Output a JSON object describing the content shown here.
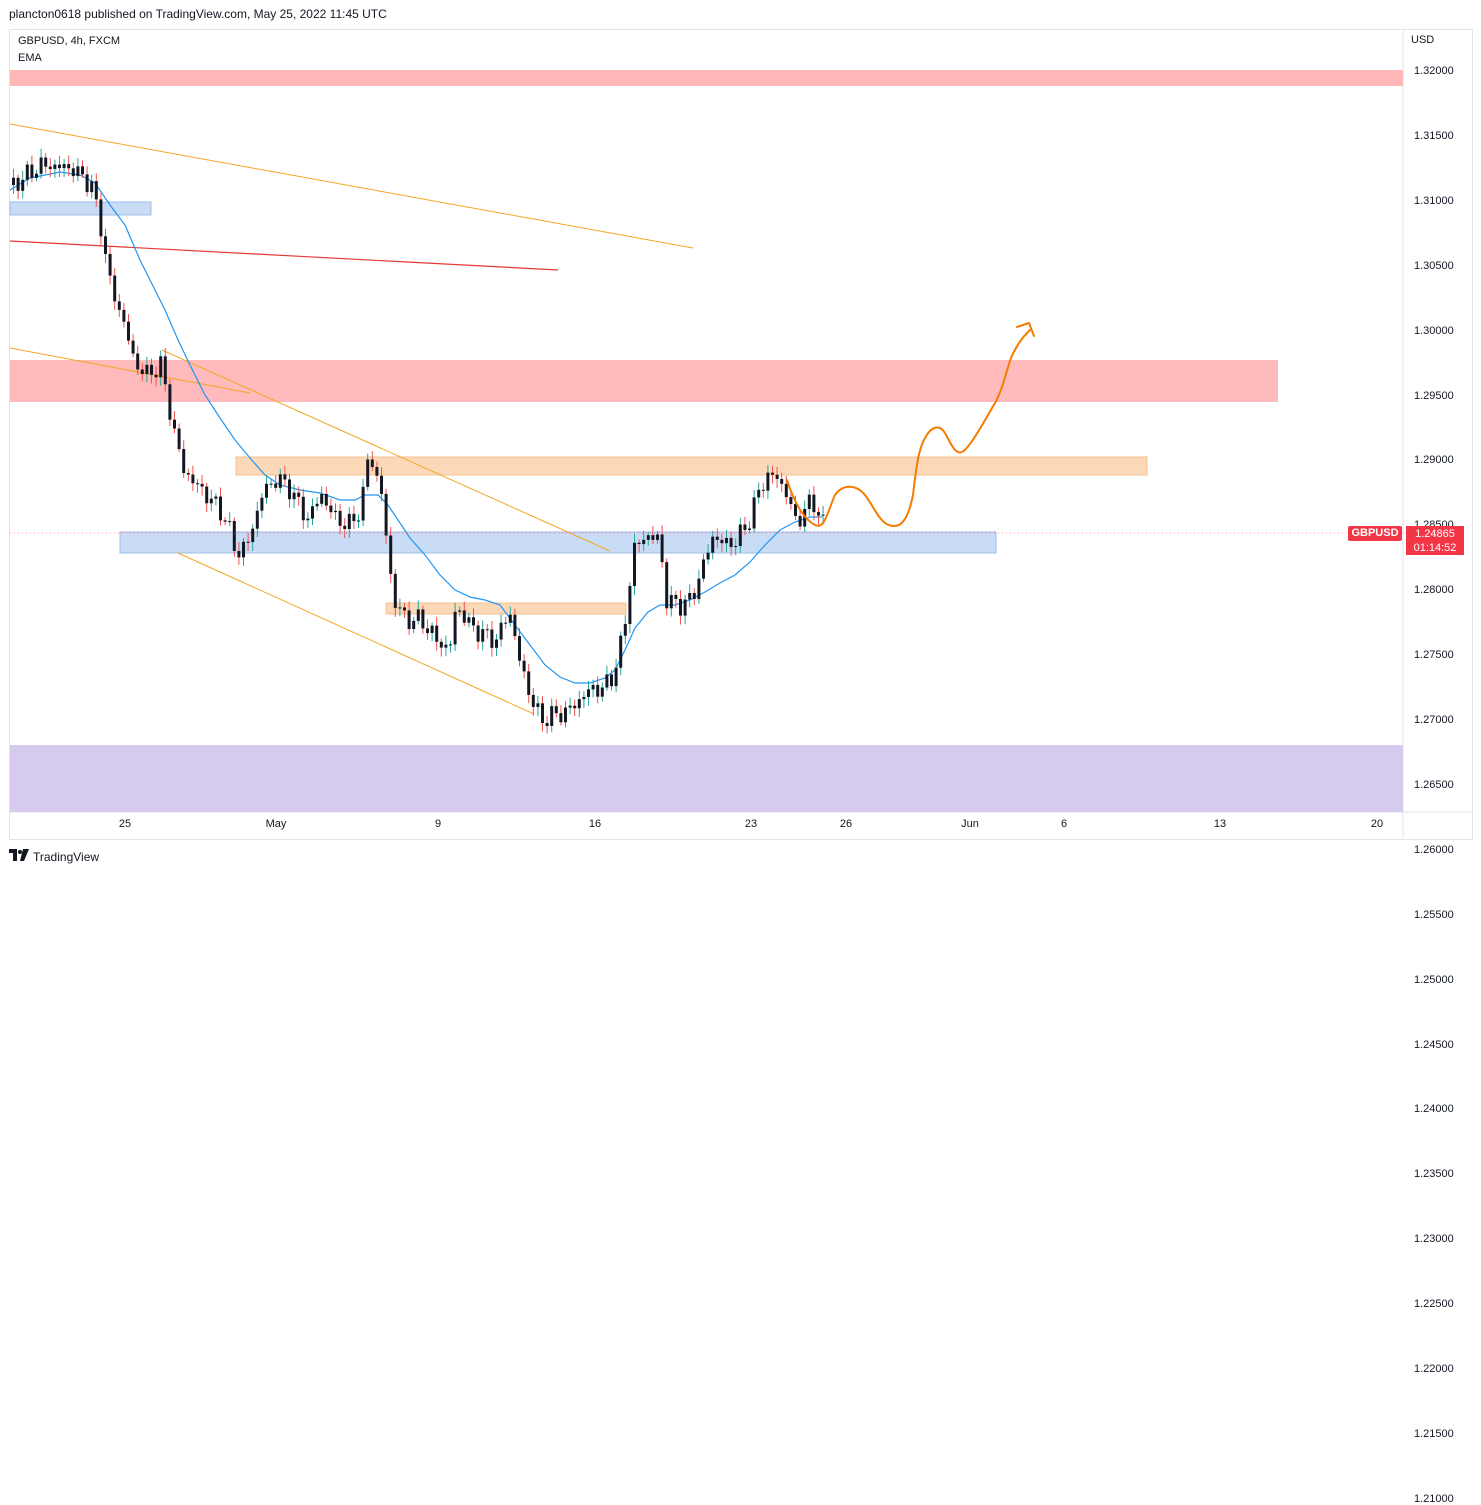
{
  "header": {
    "publish_info": "plancton0618 published on TradingView.com, May 25, 2022 11:45 UTC"
  },
  "chart": {
    "symbol_line": "GBPUSD, 4h, FXCM",
    "indicator": "EMA",
    "currency": "USD",
    "price_ticks": [
      "1.32000",
      "1.31500",
      "1.31000",
      "1.30500",
      "1.30000",
      "1.29500",
      "1.29000",
      "1.28500",
      "1.28000",
      "1.27500",
      "1.27000",
      "1.26500",
      "1.26000",
      "1.25500",
      "1.25000",
      "1.24500",
      "1.24000",
      "1.23500",
      "1.23000",
      "1.22500",
      "1.22000",
      "1.21500",
      "1.21000"
    ],
    "time_ticks": [
      "25",
      "May",
      "9",
      "16",
      "23",
      "26",
      "Jun",
      "6",
      "13",
      "20"
    ],
    "last_price_label": {
      "symbol": "GBPUSD",
      "price": "1.24865",
      "countdown": "01:14:52"
    },
    "colors": {
      "up": "#26a69a",
      "down": "#ef5350",
      "ema": "#2196f3",
      "red_zone": "#ffb3b3",
      "orange_zone": "#fbd6b4",
      "blue_zone": "#c7dbf5",
      "purple_zone": "#d5c9ee",
      "trendline": "#f5a623",
      "projection": "#f57c00"
    }
  },
  "footer": {
    "brand": "TradingView",
    "logo_icon": "tradingview-logo-icon"
  }
}
